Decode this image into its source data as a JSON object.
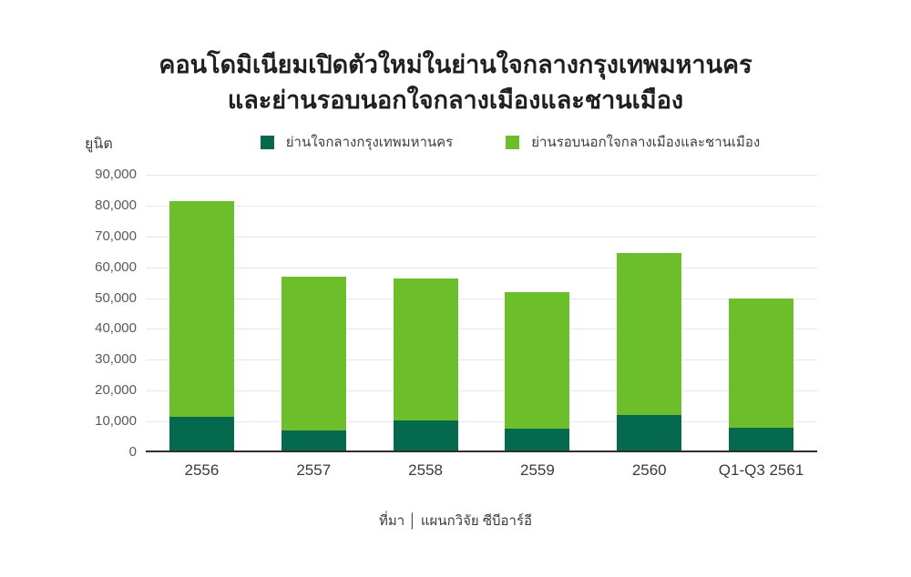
{
  "title": {
    "line1": "คอนโดมิเนียมเปิดตัวใหม่ในย่านใจกลางกรุงเทพมหานคร",
    "line2": "และย่านรอบนอกใจกลางเมืองและชานเมือง"
  },
  "y_axis_unit_label": "ยูนิต",
  "source_line": "ที่มา │ แผนกวิจัย ซีบีอาร์อี",
  "colors": {
    "cbd_dark_green": "#05694D",
    "suburb_light_green": "#6CBE2B",
    "gridline": "#e7e7e7",
    "axis": "#2e2e2e"
  },
  "chart_data": {
    "type": "bar",
    "stacked": true,
    "title": "คอนโดมิเนียมเปิดตัวใหม่ในย่านใจกลางกรุงเทพมหานคร และย่านรอบนอกใจกลางเมืองและชานเมือง",
    "categories": [
      "2556",
      "2557",
      "2558",
      "2559",
      "2560",
      "Q1-Q3 2561"
    ],
    "series": [
      {
        "name": "ย่านใจกลางกรุงเทพมหานคร",
        "color": "#05694D",
        "values": [
          11500,
          7000,
          10400,
          7800,
          12200,
          8100
        ]
      },
      {
        "name": "ย่านรอบนอกใจกลางเมืองและชานเมือง",
        "color": "#6CBE2B",
        "values": [
          70000,
          50000,
          46100,
          44200,
          52300,
          41900
        ]
      }
    ],
    "totals": [
      81500,
      57000,
      56500,
      52000,
      64500,
      50000
    ],
    "xlabel": "",
    "ylabel": "ยูนิต",
    "ylim": [
      0,
      90000
    ],
    "ytick_step": 10000,
    "ytick_labels": [
      "0",
      "10,000",
      "20,000",
      "30,000",
      "40,000",
      "50,000",
      "60,000",
      "70,000",
      "80,000",
      "90,000"
    ],
    "grid": true,
    "legend_position": "top"
  }
}
